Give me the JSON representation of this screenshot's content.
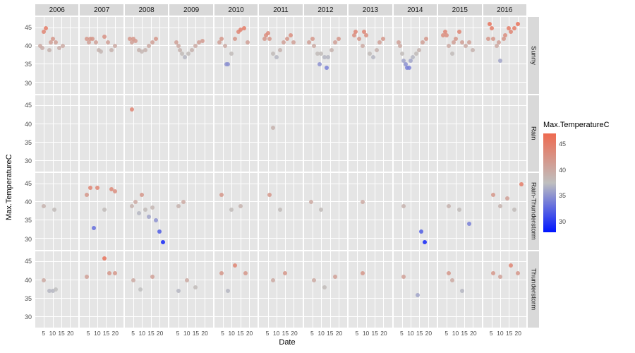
{
  "axis": {
    "y_title": "Max.TemperatureC",
    "x_title": "Date",
    "y_ticks": [
      30,
      35,
      40,
      45
    ],
    "x_ticks": [
      5,
      10,
      15,
      20
    ],
    "ylim": [
      27,
      48
    ],
    "xlim": [
      0,
      25
    ]
  },
  "cols": [
    "2006",
    "2007",
    "2008",
    "2009",
    "2010",
    "2011",
    "2012",
    "2013",
    "2014",
    "2015",
    "2016"
  ],
  "rows": [
    "Sunny",
    "Rain",
    "Rain-Thunderstorm",
    "Thunderstorm"
  ],
  "legend": {
    "title": "Max.TemperatureC",
    "ticks": [
      30,
      35,
      40,
      45
    ],
    "range": [
      28,
      47
    ],
    "colors": {
      "low": "#0015ff",
      "mid": "#bfbfbf",
      "high": "#ee6a50"
    }
  },
  "panel_style": {
    "bg": "#e5e5e5",
    "grid": "#ffffff",
    "point_size": 6,
    "point_opacity": 0.85
  },
  "points": {
    "Sunny": {
      "2006": [
        [
          3,
          40
        ],
        [
          4,
          39.5
        ],
        [
          5,
          44
        ],
        [
          6,
          45
        ],
        [
          8,
          39
        ],
        [
          9,
          41
        ],
        [
          10,
          42
        ],
        [
          12,
          41
        ],
        [
          14,
          39.5
        ],
        [
          16,
          40
        ]
      ],
      "2007": [
        [
          4,
          42
        ],
        [
          5,
          41
        ],
        [
          6,
          42
        ],
        [
          7,
          42
        ],
        [
          9,
          41
        ],
        [
          11,
          39
        ],
        [
          12,
          38.5
        ],
        [
          14,
          42.5
        ],
        [
          16,
          41
        ],
        [
          18,
          39
        ],
        [
          20,
          40
        ]
      ],
      "2008": [
        [
          3,
          42
        ],
        [
          4,
          41
        ],
        [
          5,
          42
        ],
        [
          6,
          41.5
        ],
        [
          8,
          39
        ],
        [
          10,
          38.5
        ],
        [
          12,
          39
        ],
        [
          14,
          40
        ],
        [
          16,
          41
        ],
        [
          18,
          42
        ]
      ],
      "2009": [
        [
          4,
          41
        ],
        [
          5,
          40
        ],
        [
          6,
          39
        ],
        [
          7,
          38
        ],
        [
          9,
          37
        ],
        [
          11,
          38
        ],
        [
          13,
          39
        ],
        [
          15,
          40
        ],
        [
          17,
          41
        ],
        [
          19,
          41.5
        ]
      ],
      "2010": [
        [
          3,
          41
        ],
        [
          4,
          42
        ],
        [
          6,
          40
        ],
        [
          7,
          35
        ],
        [
          8,
          35
        ],
        [
          10,
          38
        ],
        [
          12,
          42
        ],
        [
          14,
          44
        ],
        [
          15,
          44.5
        ],
        [
          17,
          45
        ],
        [
          19,
          41
        ]
      ],
      "2011": [
        [
          3,
          42
        ],
        [
          4,
          43
        ],
        [
          5,
          43.5
        ],
        [
          6,
          42
        ],
        [
          8,
          38
        ],
        [
          10,
          37
        ],
        [
          12,
          39
        ],
        [
          14,
          41
        ],
        [
          16,
          42
        ],
        [
          18,
          43
        ],
        [
          20,
          41
        ]
      ],
      "2012": [
        [
          3,
          41
        ],
        [
          5,
          42
        ],
        [
          6,
          40
        ],
        [
          8,
          38
        ],
        [
          9,
          35
        ],
        [
          10,
          38
        ],
        [
          12,
          37
        ],
        [
          13,
          34
        ],
        [
          14,
          37
        ],
        [
          16,
          39
        ],
        [
          18,
          41
        ],
        [
          20,
          42
        ]
      ],
      "2013": [
        [
          3,
          43
        ],
        [
          4,
          44
        ],
        [
          6,
          42
        ],
        [
          8,
          40
        ],
        [
          9,
          44
        ],
        [
          10,
          43
        ],
        [
          12,
          38
        ],
        [
          14,
          37
        ],
        [
          16,
          39
        ],
        [
          18,
          41
        ],
        [
          20,
          42
        ]
      ],
      "2014": [
        [
          3,
          41
        ],
        [
          4,
          40
        ],
        [
          5,
          38
        ],
        [
          6,
          36
        ],
        [
          7,
          35
        ],
        [
          8,
          34
        ],
        [
          9,
          34
        ],
        [
          10,
          36
        ],
        [
          11,
          37
        ],
        [
          13,
          38
        ],
        [
          15,
          39
        ],
        [
          17,
          41
        ],
        [
          19,
          42
        ]
      ],
      "2015": [
        [
          3,
          43
        ],
        [
          4,
          44
        ],
        [
          5,
          43
        ],
        [
          6,
          40
        ],
        [
          8,
          38
        ],
        [
          9,
          41
        ],
        [
          10,
          42
        ],
        [
          12,
          44
        ],
        [
          14,
          41
        ],
        [
          16,
          40
        ],
        [
          18,
          41
        ],
        [
          20,
          39
        ]
      ],
      "2016": [
        [
          3,
          42
        ],
        [
          4,
          46
        ],
        [
          5,
          45
        ],
        [
          6,
          42
        ],
        [
          8,
          40
        ],
        [
          9,
          41
        ],
        [
          10,
          36
        ],
        [
          12,
          42
        ],
        [
          13,
          43
        ],
        [
          15,
          45
        ],
        [
          16,
          44
        ],
        [
          18,
          45
        ],
        [
          20,
          46
        ]
      ]
    },
    "Rain": {
      "2006": [],
      "2007": [],
      "2008": [
        [
          4,
          44
        ]
      ],
      "2009": [],
      "2010": [],
      "2011": [
        [
          8,
          39
        ]
      ],
      "2012": [],
      "2013": [],
      "2014": [],
      "2015": [],
      "2016": []
    },
    "Rain-Thunderstorm": {
      "2006": [
        [
          5,
          39
        ],
        [
          11,
          38
        ]
      ],
      "2007": [
        [
          4,
          42
        ],
        [
          6,
          44
        ],
        [
          8,
          33
        ],
        [
          10,
          44
        ],
        [
          14,
          38
        ],
        [
          18,
          43.5
        ],
        [
          20,
          43
        ]
      ],
      "2008": [
        [
          4,
          39
        ],
        [
          6,
          40
        ],
        [
          8,
          37
        ],
        [
          10,
          42
        ],
        [
          12,
          38
        ],
        [
          14,
          36
        ],
        [
          16,
          38.5
        ],
        [
          18,
          35
        ],
        [
          20,
          32
        ],
        [
          22,
          29
        ]
      ],
      "2009": [
        [
          5,
          39
        ],
        [
          8,
          40
        ]
      ],
      "2010": [
        [
          4,
          42
        ],
        [
          10,
          38
        ],
        [
          15,
          39
        ]
      ],
      "2011": [
        [
          6,
          42
        ],
        [
          12,
          38
        ]
      ],
      "2012": [
        [
          4,
          40
        ],
        [
          10,
          38
        ]
      ],
      "2013": [
        [
          8,
          40
        ]
      ],
      "2014": [
        [
          6,
          39
        ],
        [
          16,
          32
        ],
        [
          18,
          29
        ]
      ],
      "2015": [
        [
          6,
          39
        ],
        [
          12,
          38
        ],
        [
          18,
          34
        ]
      ],
      "2016": [
        [
          6,
          42
        ],
        [
          10,
          39
        ],
        [
          14,
          41
        ],
        [
          18,
          38
        ],
        [
          22,
          45
        ]
      ]
    },
    "Thunderstorm": {
      "2006": [
        [
          5,
          40
        ],
        [
          8,
          37
        ],
        [
          10,
          37
        ],
        [
          12,
          37.5
        ]
      ],
      "2007": [
        [
          4,
          41
        ],
        [
          14,
          46
        ],
        [
          17,
          42
        ],
        [
          20,
          42
        ]
      ],
      "2008": [
        [
          5,
          40
        ],
        [
          9,
          37.5
        ],
        [
          16,
          41
        ]
      ],
      "2009": [
        [
          5,
          37
        ],
        [
          10,
          40
        ],
        [
          15,
          38
        ]
      ],
      "2010": [
        [
          4,
          42
        ],
        [
          8,
          37
        ],
        [
          12,
          44
        ],
        [
          18,
          42
        ]
      ],
      "2011": [
        [
          8,
          40
        ],
        [
          15,
          42
        ]
      ],
      "2012": [
        [
          6,
          40
        ],
        [
          12,
          38
        ],
        [
          18,
          41
        ]
      ],
      "2013": [
        [
          8,
          42
        ]
      ],
      "2014": [
        [
          6,
          41
        ],
        [
          14,
          36
        ]
      ],
      "2015": [
        [
          6,
          42
        ],
        [
          8,
          40
        ],
        [
          14,
          37
        ]
      ],
      "2016": [
        [
          6,
          42
        ],
        [
          10,
          41
        ],
        [
          16,
          44
        ],
        [
          20,
          42
        ]
      ]
    }
  }
}
